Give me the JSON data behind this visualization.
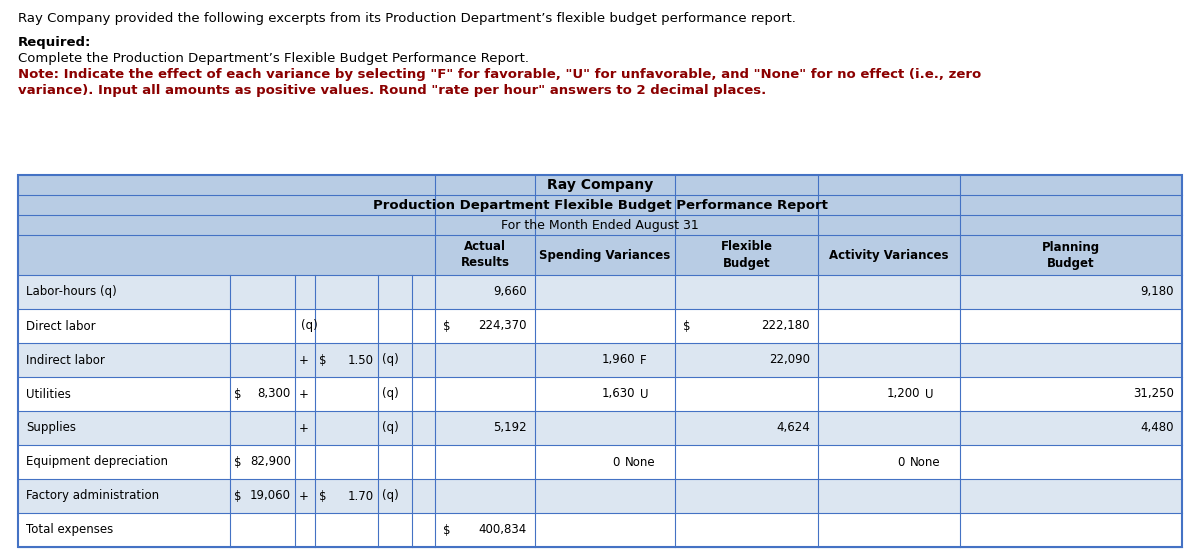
{
  "intro_text": "Ray Company provided the following excerpts from its Production Department’s flexible budget performance report.",
  "required_label": "Required:",
  "required_line1": "Complete the Production Department’s Flexible Budget Performance Report.",
  "required_line2_red": "Note: Indicate the effect of each variance by selecting \"F\" for favorable, \"U\" for unfavorable, and \"None\" for no effect (i.e., zero",
  "required_line3_red": "variance). Input all amounts as positive values. Round \"rate per hour\" answers to 2 decimal places.",
  "table_title1": "Ray Company",
  "table_title2": "Production Department Flexible Budget Performance Report",
  "table_title3": "For the Month Ended August 31",
  "col_headers": [
    "Actual\nResults",
    "Spending Variances",
    "Flexible\nBudget",
    "Activity Variances",
    "Planning\nBudget"
  ],
  "header_bg": "#b8cce4",
  "data_bg_odd": "#dce6f1",
  "data_bg_even": "#ffffff",
  "border_color": "#4472c4",
  "border_lw": 0.8,
  "font_size": 8.5,
  "title_font_size": 9.5
}
